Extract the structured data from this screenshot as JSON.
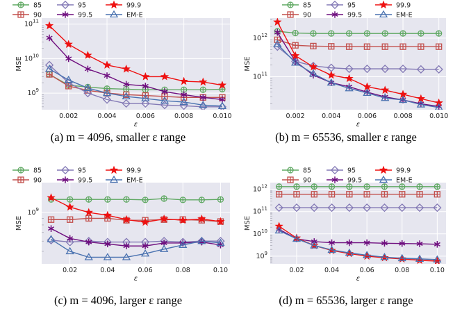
{
  "legend_colors": {
    "85": "#5fa862",
    "90": "#c2504d",
    "95": "#8379b5",
    "99.9": "#ee1111",
    "99.5": "#6f0f7f",
    "EM-E": "#4a72b0"
  },
  "chart_data": [
    {
      "type": "line",
      "caption": "(a) m = 4096, smaller ε range",
      "xlabel": "ε",
      "ylabel": "MSE",
      "yscale": "log",
      "xlim": [
        0.0006,
        0.0104
      ],
      "ylim": [
        330000000.0,
        150000000000.0
      ],
      "x_ticks": [
        0.002,
        0.004,
        0.006,
        0.008,
        0.01
      ],
      "x_tick_labels": [
        "0.002",
        "0.004",
        "0.006",
        "0.008",
        "0.010"
      ],
      "y_ticks": [
        1000000000.0,
        10000000000.0,
        100000000000.0
      ],
      "y_tick_labels": [
        [
          "10",
          "9"
        ],
        [
          "10",
          "10"
        ],
        [
          "10",
          "11"
        ]
      ],
      "grid": true,
      "legend_position": "top",
      "x": [
        0.001,
        0.002,
        0.003,
        0.004,
        0.005,
        0.006,
        0.007,
        0.008,
        0.009,
        0.01
      ],
      "series": [
        {
          "name": "85",
          "values": [
            3500000000.0,
            1700000000.0,
            1500000000.0,
            1350000000.0,
            1300000000.0,
            1250000000.0,
            1250000000.0,
            1250000000.0,
            1250000000.0,
            1300000000.0
          ]
        },
        {
          "name": "90",
          "values": [
            3500000000.0,
            1600000000.0,
            1200000000.0,
            1000000000.0,
            900000000.0,
            850000000.0,
            800000000.0,
            750000000.0,
            750000000.0,
            750000000.0
          ]
        },
        {
          "name": "95",
          "values": [
            6500000000.0,
            2000000000.0,
            1000000000.0,
            650000000.0,
            500000000.0,
            500000000.0,
            450000000.0,
            430000000.0,
            400000000.0,
            400000000.0
          ]
        },
        {
          "name": "99.5",
          "values": [
            40000000000.0,
            10000000000.0,
            5000000000.0,
            3200000000.0,
            1800000000.0,
            1600000000.0,
            1100000000.0,
            900000000.0,
            750000000.0,
            650000000.0
          ]
        },
        {
          "name": "99.9",
          "values": [
            90000000000.0,
            26000000000.0,
            12500000000.0,
            6500000000.0,
            5000000000.0,
            3000000000.0,
            3000000000.0,
            2200000000.0,
            2100000000.0,
            1700000000.0
          ]
        },
        {
          "name": "EM-E",
          "values": [
            5000000000.0,
            2400000000.0,
            1400000000.0,
            1000000000.0,
            800000000.0,
            700000000.0,
            600000000.0,
            550000000.0,
            450000000.0,
            420000000.0
          ]
        }
      ]
    },
    {
      "type": "line",
      "caption": "(b) m = 65536, smaller ε range",
      "xlabel": "ε",
      "ylabel": "MSE",
      "yscale": "log",
      "xlim": [
        0.0006,
        0.0104
      ],
      "ylim": [
        14000000000.0,
        3300000000000.0
      ],
      "x_ticks": [
        0.002,
        0.004,
        0.006,
        0.008,
        0.01
      ],
      "x_tick_labels": [
        "0.002",
        "0.004",
        "0.006",
        "0.008",
        "0.010"
      ],
      "y_ticks": [
        100000000000.0,
        1000000000000.0
      ],
      "y_tick_labels": [
        [
          "10",
          "11"
        ],
        [
          "10",
          "12"
        ]
      ],
      "grid": true,
      "legend_position": "top",
      "x": [
        0.001,
        0.002,
        0.003,
        0.004,
        0.005,
        0.006,
        0.007,
        0.008,
        0.009,
        0.01
      ],
      "series": [
        {
          "name": "85",
          "values": [
            1500000000000.0,
            1350000000000.0,
            1320000000000.0,
            1320000000000.0,
            1320000000000.0,
            1320000000000.0,
            1320000000000.0,
            1320000000000.0,
            1320000000000.0,
            1320000000000.0
          ]
        },
        {
          "name": "90",
          "values": [
            900000000000.0,
            650000000000.0,
            620000000000.0,
            610000000000.0,
            600000000000.0,
            600000000000.0,
            600000000000.0,
            600000000000.0,
            600000000000.0,
            600000000000.0
          ]
        },
        {
          "name": "95",
          "values": [
            600000000000.0,
            250000000000.0,
            190000000000.0,
            170000000000.0,
            160000000000.0,
            160000000000.0,
            160000000000.0,
            160000000000.0,
            155000000000.0,
            155000000000.0
          ]
        },
        {
          "name": "99.5",
          "values": [
            1400000000000.0,
            250000000000.0,
            110000000000.0,
            70000000000.0,
            55000000000.0,
            40000000000.0,
            30000000000.0,
            25000000000.0,
            20000000000.0,
            17000000000.0
          ]
        },
        {
          "name": "99.9",
          "values": [
            2600000000000.0,
            350000000000.0,
            180000000000.0,
            110000000000.0,
            90000000000.0,
            55000000000.0,
            45000000000.0,
            35000000000.0,
            27000000000.0,
            21000000000.0
          ]
        },
        {
          "name": "EM-E",
          "values": [
            700000000000.0,
            230000000000.0,
            120000000000.0,
            70000000000.0,
            50000000000.0,
            38000000000.0,
            28000000000.0,
            25000000000.0,
            19000000000.0,
            16000000000.0
          ]
        }
      ]
    },
    {
      "type": "line",
      "caption": "(c) m = 4096, larger ε range",
      "xlabel": "ε",
      "ylabel": "MSE",
      "yscale": "log",
      "xlim": [
        0.005,
        0.105
      ],
      "ylim": [
        400000000.0,
        1700000000.0
      ],
      "x_ticks": [
        0.02,
        0.04,
        0.06,
        0.08,
        0.1
      ],
      "x_tick_labels": [
        "0.02",
        "0.04",
        "0.06",
        "0.08",
        "0.10"
      ],
      "y_ticks": [
        1000000000.0
      ],
      "y_tick_labels": [
        [
          "10",
          "9"
        ]
      ],
      "grid": true,
      "legend_position": "top",
      "x": [
        0.01,
        0.02,
        0.03,
        0.04,
        0.05,
        0.06,
        0.07,
        0.08,
        0.09,
        0.1
      ],
      "series": [
        {
          "name": "85",
          "values": [
            1260000000.0,
            1260000000.0,
            1260000000.0,
            1260000000.0,
            1260000000.0,
            1250000000.0,
            1280000000.0,
            1250000000.0,
            1250000000.0,
            1260000000.0
          ]
        },
        {
          "name": "90",
          "values": [
            880000000.0,
            880000000.0,
            900000000.0,
            900000000.0,
            870000000.0,
            870000000.0,
            880000000.0,
            880000000.0,
            870000000.0,
            850000000.0
          ]
        },
        {
          "name": "95",
          "values": [
            610000000.0,
            590000000.0,
            600000000.0,
            590000000.0,
            590000000.0,
            590000000.0,
            600000000.0,
            590000000.0,
            600000000.0,
            600000000.0
          ]
        },
        {
          "name": "99.5",
          "values": [
            750000000.0,
            630000000.0,
            590000000.0,
            570000000.0,
            550000000.0,
            550000000.0,
            580000000.0,
            580000000.0,
            590000000.0,
            560000000.0
          ]
        },
        {
          "name": "99.9",
          "values": [
            1300000000.0,
            1100000000.0,
            1000000000.0,
            950000000.0,
            880000000.0,
            840000000.0,
            890000000.0,
            870000000.0,
            890000000.0,
            850000000.0
          ]
        },
        {
          "name": "EM-E",
          "values": [
            620000000.0,
            500000000.0,
            450000000.0,
            450000000.0,
            450000000.0,
            480000000.0,
            520000000.0,
            560000000.0,
            600000000.0,
            580000000.0
          ]
        }
      ]
    },
    {
      "type": "line",
      "caption": "(d) m = 65536, larger ε range",
      "xlabel": "ε",
      "ylabel": "MSE",
      "yscale": "log",
      "xlim": [
        0.005,
        0.105
      ],
      "ylim": [
        450000000.0,
        2000000000000.0
      ],
      "x_ticks": [
        0.02,
        0.04,
        0.06,
        0.08,
        0.1
      ],
      "x_tick_labels": [
        "0.02",
        "0.04",
        "0.06",
        "0.08",
        "0.10"
      ],
      "y_ticks": [
        1000000000.0,
        10000000000.0,
        100000000000.0,
        1000000000000.0
      ],
      "y_tick_labels": [
        [
          "10",
          "9"
        ],
        [
          "10",
          "10"
        ],
        [
          "10",
          "11"
        ],
        [
          "10",
          "12"
        ]
      ],
      "grid": true,
      "legend_position": "top",
      "x": [
        0.01,
        0.02,
        0.03,
        0.04,
        0.05,
        0.06,
        0.07,
        0.08,
        0.09,
        0.1
      ],
      "series": [
        {
          "name": "85",
          "values": [
            1320000000000.0,
            1320000000000.0,
            1320000000000.0,
            1320000000000.0,
            1320000000000.0,
            1320000000000.0,
            1320000000000.0,
            1320000000000.0,
            1320000000000.0,
            1320000000000.0
          ]
        },
        {
          "name": "90",
          "values": [
            600000000000.0,
            600000000000.0,
            600000000000.0,
            600000000000.0,
            600000000000.0,
            600000000000.0,
            600000000000.0,
            600000000000.0,
            600000000000.0,
            600000000000.0
          ]
        },
        {
          "name": "95",
          "values": [
            150000000000.0,
            150000000000.0,
            150000000000.0,
            150000000000.0,
            150000000000.0,
            150000000000.0,
            150000000000.0,
            150000000000.0,
            150000000000.0,
            150000000000.0
          ]
        },
        {
          "name": "99.5",
          "values": [
            16000000000.0,
            6000000000.0,
            4500000000.0,
            4000000000.0,
            4000000000.0,
            4000000000.0,
            3800000000.0,
            3700000000.0,
            3600000000.0,
            3400000000.0
          ]
        },
        {
          "name": "99.9",
          "values": [
            22000000000.0,
            6500000000.0,
            3000000000.0,
            1800000000.0,
            1300000000.0,
            1000000000.0,
            850000000.0,
            750000000.0,
            650000000.0,
            600000000.0
          ]
        },
        {
          "name": "EM-E",
          "values": [
            14000000000.0,
            6000000000.0,
            3000000000.0,
            1900000000.0,
            1400000000.0,
            1100000000.0,
            900000000.0,
            800000000.0,
            750000000.0,
            700000000.0
          ]
        }
      ]
    }
  ]
}
